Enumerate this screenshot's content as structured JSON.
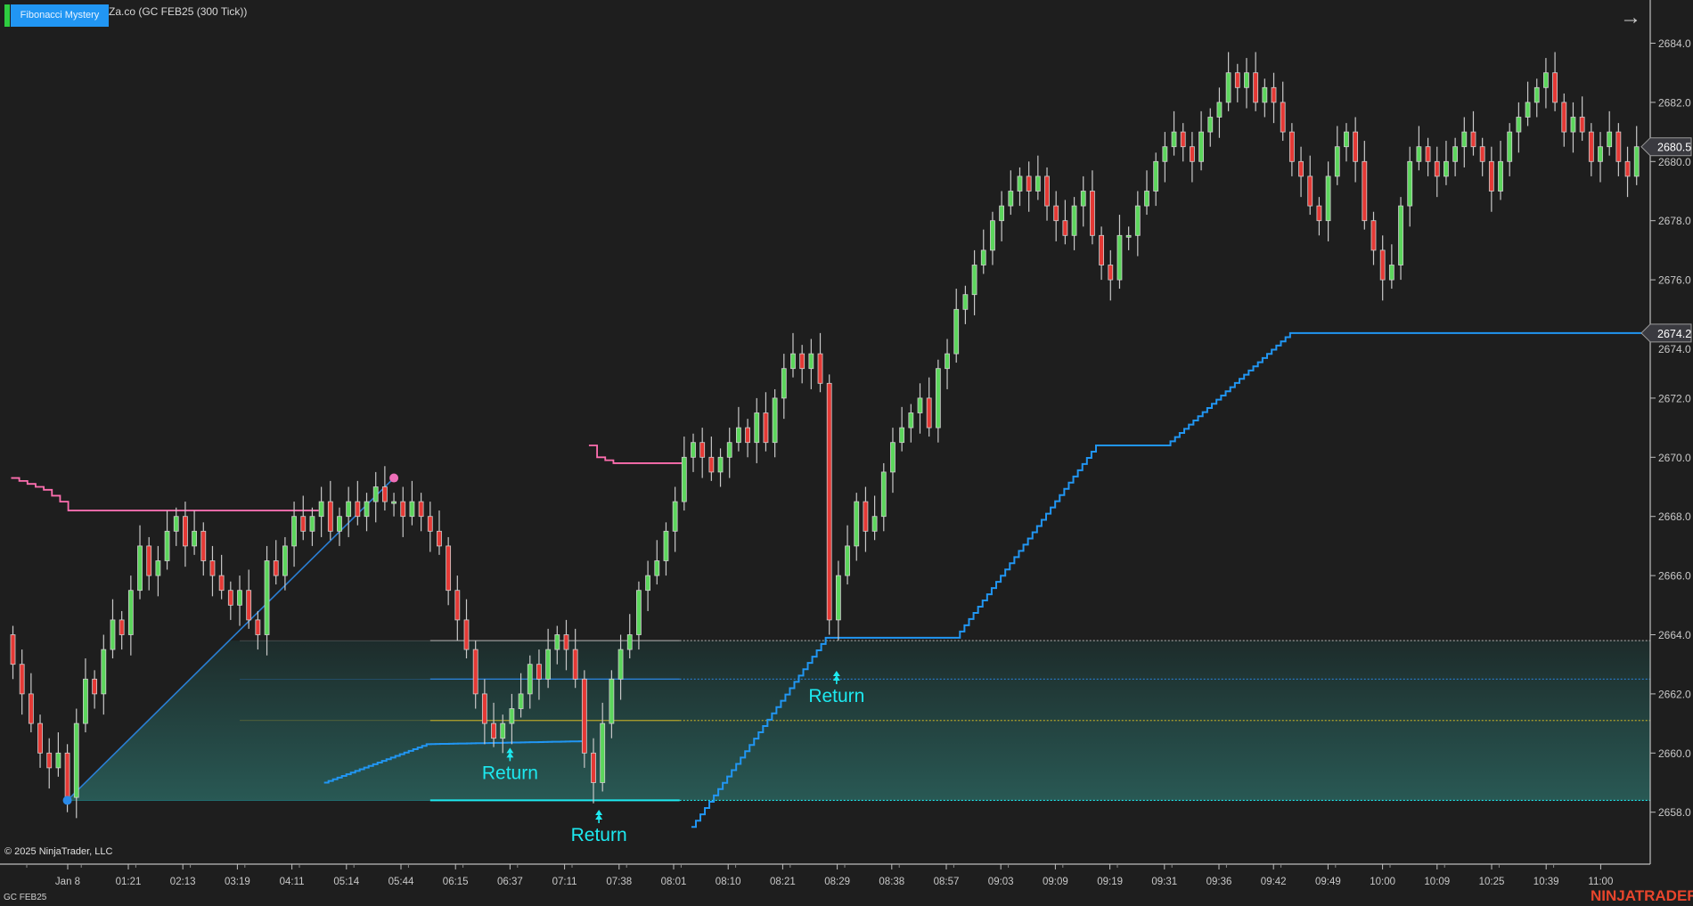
{
  "header": {
    "indicator_button": "Fibonacci Mystery",
    "title": "Za.co (GC FEB25 (300 Tick))",
    "status_color": "#2ecc40",
    "accent": "#2196f3"
  },
  "footer": {
    "copyright": "© 2025 NinjaTrader, LLC",
    "instrument": "GC FEB25",
    "logo": "NINJATRADER"
  },
  "chart_data": {
    "type": "candlestick",
    "instrument": "GC FEB25",
    "interval": "300 Tick",
    "y_ticks": [
      "2658.0",
      "2660.0",
      "2662.0",
      "2664.0",
      "2666.0",
      "2668.0",
      "2670.0",
      "2672.0",
      "2674.0",
      "2676.0",
      "2678.0",
      "2680.0",
      "2682.0",
      "2684.0"
    ],
    "x_ticks": [
      "Jan 8",
      "01:21",
      "02:13",
      "03:19",
      "04:11",
      "05:14",
      "05:44",
      "06:15",
      "06:37",
      "07:11",
      "07:38",
      "08:01",
      "08:10",
      "08:21",
      "08:29",
      "08:38",
      "08:57",
      "09:03",
      "09:09",
      "09:19",
      "09:31",
      "09:36",
      "09:42",
      "09:49",
      "10:00",
      "10:09",
      "10:25",
      "10:39",
      "11:00"
    ],
    "closes": [
      2663,
      2662,
      2661,
      2660,
      2659.5,
      2660,
      2658.5,
      2661,
      2662.5,
      2662,
      2663.5,
      2664.5,
      2664,
      2665.5,
      2667,
      2666,
      2666.5,
      2667.5,
      2668,
      2667,
      2667.5,
      2666.5,
      2666,
      2665.5,
      2665,
      2665.5,
      2664.5,
      2664,
      2666.5,
      2666,
      2667,
      2668,
      2667.5,
      2668,
      2668.5,
      2667.5,
      2668,
      2668.5,
      2668,
      2668.5,
      2669,
      2668.5,
      2668.5,
      2668,
      2668.5,
      2668,
      2667.5,
      2667,
      2665.5,
      2664.5,
      2663.5,
      2662,
      2661,
      2660.5,
      2661,
      2661.5,
      2662,
      2663,
      2662.5,
      2663.5,
      2664,
      2663.5,
      2662.5,
      2660,
      2659,
      2661,
      2662.5,
      2663.5,
      2664,
      2665.5,
      2666,
      2666.5,
      2667.5,
      2668.5,
      2670,
      2670.5,
      2670,
      2669.5,
      2670,
      2670.5,
      2671,
      2670.5,
      2671.5,
      2670.5,
      2672,
      2673,
      2673.5,
      2673,
      2673.5,
      2672.5,
      2664.5,
      2666,
      2667,
      2668.5,
      2667.5,
      2668,
      2669.5,
      2670.5,
      2671,
      2671.5,
      2672,
      2671,
      2673,
      2673.5,
      2675,
      2675.5,
      2676.5,
      2677,
      2678,
      2678.5,
      2679,
      2679.5,
      2679,
      2679.5,
      2678.5,
      2678,
      2677.5,
      2678.5,
      2679,
      2677.5,
      2676.5,
      2676,
      2677.5,
      2677.5,
      2678.5,
      2679,
      2680,
      2680.5,
      2681,
      2680.5,
      2680,
      2681,
      2681.5,
      2682,
      2683,
      2682.5,
      2683,
      2682,
      2682.5,
      2682,
      2681,
      2680,
      2679.5,
      2678.5,
      2678,
      2679.5,
      2680.5,
      2681,
      2680,
      2678,
      2677,
      2676,
      2676.5,
      2678.5,
      2680,
      2680.5,
      2680,
      2679.5,
      2680,
      2680.5,
      2681,
      2680.5,
      2680,
      2679,
      2680,
      2681,
      2681.5,
      2682,
      2682.5,
      2683,
      2682,
      2681,
      2681.5,
      2681,
      2680,
      2680.5,
      2681,
      2680,
      2679.5,
      2680.5
    ],
    "last_price": "2680.5",
    "stop_price": "2674.2",
    "colors": {
      "up": "#5cd65c",
      "down": "#e53935",
      "wick": "#c8c8c8",
      "fib_line": "#2a7fd4",
      "stop_line": "#2196f3",
      "resistance": "#ff6fb0",
      "return_label": "#1de9f0"
    },
    "fibonacci": {
      "swing_low": 2658.4,
      "swing_high": 2669.3,
      "levels": [
        {
          "price": 2663.8,
          "color": "#9a9a9a"
        },
        {
          "price": 2662.5,
          "color": "#2a7fd4"
        },
        {
          "price": 2661.1,
          "color": "#b5a52a"
        },
        {
          "price": 2658.4,
          "color": "#1de9f0"
        }
      ],
      "zone_color": "#2a5f5a"
    },
    "resistance_steps": [
      [
        2669.3,
        2669.2,
        2669.1,
        2669.0,
        2668.9,
        2668.7,
        2668.5,
        2668.2
      ],
      [
        2670.4,
        2670.0,
        2669.9,
        2669.8
      ]
    ],
    "annotations": [
      "Return",
      "Return",
      "Return"
    ]
  }
}
